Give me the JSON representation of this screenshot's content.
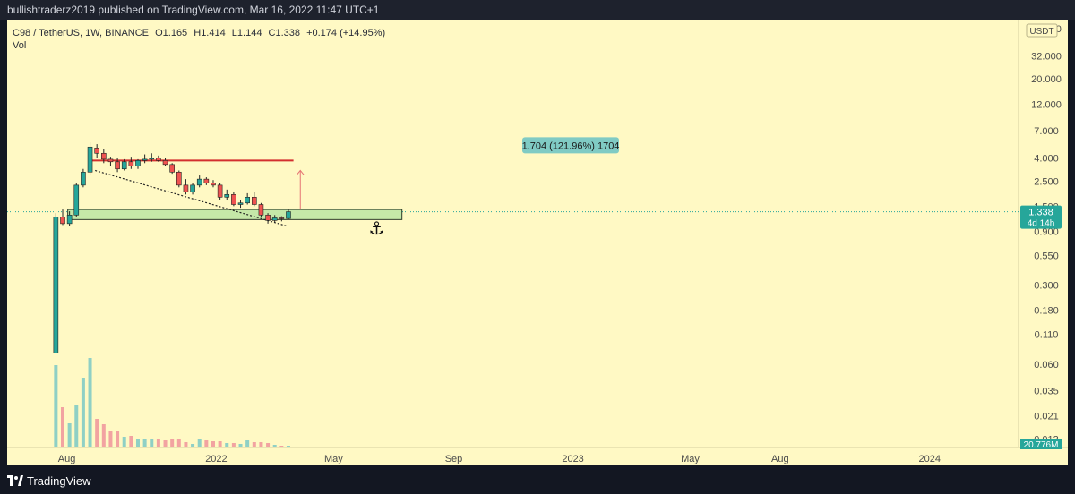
{
  "header": {
    "published_text": "bullishtraderz2019 published on TradingView.com, Mar 16, 2022 11:47 UTC+1"
  },
  "legend": {
    "symbol": "C98 / TetherUS, 1W, BINANCE",
    "open": "O1.165",
    "high": "H1.414",
    "low": "L1.144",
    "close": "C1.338",
    "change": "+0.174 (+14.95%)",
    "vol_label": "Vol"
  },
  "footer": {
    "brand": "TradingView"
  },
  "colors": {
    "background": "#fff9c4",
    "up": "#26a69a",
    "down": "#ef5350",
    "price_line": "#26a69a",
    "resistance": "#d32f2f",
    "zone": "#c5e8a8",
    "label_bg": "#80cbc4"
  },
  "chart_data": {
    "type": "candlestick",
    "timeframe": "1W",
    "yscale": "log",
    "currency": "USDT",
    "y_tick_labels": [
      "56.000",
      "32.000",
      "20.000",
      "12.000",
      "7.000",
      "4.000",
      "2.500",
      "1.500",
      "0.900",
      "0.550",
      "0.300",
      "0.180",
      "0.110",
      "0.060",
      "0.035",
      "0.021",
      "0.013"
    ],
    "y_ticks": [
      56,
      32,
      20,
      12,
      7,
      4,
      2.5,
      1.5,
      0.9,
      0.55,
      0.3,
      0.18,
      0.11,
      0.06,
      0.035,
      0.021,
      0.013
    ],
    "x_tick_labels": [
      "Aug",
      "2022",
      "May",
      "Sep",
      "2023",
      "May",
      "Aug",
      "2024"
    ],
    "x_tick_dates": [
      "2021-08-01",
      "2022-01-01",
      "2022-05-01",
      "2022-09-01",
      "2023-01-01",
      "2023-05-01",
      "2023-08-01",
      "2024-01-01"
    ],
    "x_range": [
      "2021-06-01",
      "2024-04-01"
    ],
    "candles": [
      {
        "date": "2021-07-19",
        "open": 0.075,
        "high": 1.3,
        "low": 0.075,
        "close": 1.2
      },
      {
        "date": "2021-07-26",
        "open": 1.2,
        "high": 1.4,
        "low": 1.02,
        "close": 1.05
      },
      {
        "date": "2021-08-02",
        "open": 1.05,
        "high": 1.35,
        "low": 1.0,
        "close": 1.25
      },
      {
        "date": "2021-08-09",
        "open": 1.25,
        "high": 2.4,
        "low": 1.2,
        "close": 2.3
      },
      {
        "date": "2021-08-16",
        "open": 2.3,
        "high": 3.2,
        "low": 2.2,
        "close": 3.0
      },
      {
        "date": "2021-08-23",
        "open": 3.0,
        "high": 5.5,
        "low": 2.8,
        "close": 5.0
      },
      {
        "date": "2021-08-30",
        "open": 4.9,
        "high": 5.3,
        "low": 4.0,
        "close": 4.4
      },
      {
        "date": "2021-09-06",
        "open": 4.4,
        "high": 4.8,
        "low": 3.6,
        "close": 3.9
      },
      {
        "date": "2021-09-13",
        "open": 3.9,
        "high": 4.1,
        "low": 3.4,
        "close": 3.7
      },
      {
        "date": "2021-09-20",
        "open": 3.7,
        "high": 4.0,
        "low": 3.0,
        "close": 3.2
      },
      {
        "date": "2021-09-27",
        "open": 3.2,
        "high": 3.9,
        "low": 3.1,
        "close": 3.7
      },
      {
        "date": "2021-10-04",
        "open": 3.7,
        "high": 4.1,
        "low": 3.2,
        "close": 3.4
      },
      {
        "date": "2021-10-11",
        "open": 3.4,
        "high": 3.9,
        "low": 3.2,
        "close": 3.8
      },
      {
        "date": "2021-10-18",
        "open": 3.8,
        "high": 4.3,
        "low": 3.6,
        "close": 3.9
      },
      {
        "date": "2021-10-25",
        "open": 3.9,
        "high": 4.4,
        "low": 3.7,
        "close": 4.0
      },
      {
        "date": "2021-11-01",
        "open": 4.0,
        "high": 4.2,
        "low": 3.7,
        "close": 3.8
      },
      {
        "date": "2021-11-08",
        "open": 3.8,
        "high": 4.0,
        "low": 3.4,
        "close": 3.5
      },
      {
        "date": "2021-11-15",
        "open": 3.5,
        "high": 3.6,
        "low": 2.9,
        "close": 3.0
      },
      {
        "date": "2021-11-22",
        "open": 3.0,
        "high": 3.1,
        "low": 2.2,
        "close": 2.3
      },
      {
        "date": "2021-11-29",
        "open": 2.3,
        "high": 2.6,
        "low": 1.9,
        "close": 2.0
      },
      {
        "date": "2021-12-06",
        "open": 2.0,
        "high": 2.4,
        "low": 1.9,
        "close": 2.3
      },
      {
        "date": "2021-12-13",
        "open": 2.3,
        "high": 2.8,
        "low": 2.2,
        "close": 2.6
      },
      {
        "date": "2021-12-20",
        "open": 2.6,
        "high": 2.7,
        "low": 2.3,
        "close": 2.4
      },
      {
        "date": "2021-12-27",
        "open": 2.4,
        "high": 2.55,
        "low": 2.2,
        "close": 2.3
      },
      {
        "date": "2022-01-03",
        "open": 2.3,
        "high": 2.4,
        "low": 1.7,
        "close": 1.8
      },
      {
        "date": "2022-01-10",
        "open": 1.8,
        "high": 2.1,
        "low": 1.7,
        "close": 1.9
      },
      {
        "date": "2022-01-17",
        "open": 1.9,
        "high": 2.0,
        "low": 1.5,
        "close": 1.55
      },
      {
        "date": "2022-01-24",
        "open": 1.55,
        "high": 1.7,
        "low": 1.45,
        "close": 1.6
      },
      {
        "date": "2022-01-31",
        "open": 1.6,
        "high": 1.95,
        "low": 1.55,
        "close": 1.8
      },
      {
        "date": "2022-02-07",
        "open": 1.8,
        "high": 2.0,
        "low": 1.5,
        "close": 1.55
      },
      {
        "date": "2022-02-14",
        "open": 1.55,
        "high": 1.6,
        "low": 1.2,
        "close": 1.25
      },
      {
        "date": "2022-02-21",
        "open": 1.25,
        "high": 1.3,
        "low": 1.05,
        "close": 1.12
      },
      {
        "date": "2022-02-28",
        "open": 1.12,
        "high": 1.25,
        "low": 1.08,
        "close": 1.18
      },
      {
        "date": "2022-03-07",
        "open": 1.18,
        "high": 1.22,
        "low": 1.1,
        "close": 1.165
      },
      {
        "date": "2022-03-14",
        "open": 1.165,
        "high": 1.414,
        "low": 1.144,
        "close": 1.338
      }
    ],
    "volume": [
      {
        "date": "2021-07-19",
        "value": 92,
        "dir": "up"
      },
      {
        "date": "2021-07-26",
        "value": 45,
        "dir": "down"
      },
      {
        "date": "2021-08-02",
        "value": 27,
        "dir": "up"
      },
      {
        "date": "2021-08-09",
        "value": 47,
        "dir": "up"
      },
      {
        "date": "2021-08-16",
        "value": 78,
        "dir": "up"
      },
      {
        "date": "2021-08-23",
        "value": 100,
        "dir": "up"
      },
      {
        "date": "2021-08-30",
        "value": 32,
        "dir": "down"
      },
      {
        "date": "2021-09-06",
        "value": 26,
        "dir": "down"
      },
      {
        "date": "2021-09-13",
        "value": 18,
        "dir": "down"
      },
      {
        "date": "2021-09-20",
        "value": 18,
        "dir": "down"
      },
      {
        "date": "2021-09-27",
        "value": 12,
        "dir": "up"
      },
      {
        "date": "2021-10-04",
        "value": 13,
        "dir": "down"
      },
      {
        "date": "2021-10-11",
        "value": 10,
        "dir": "up"
      },
      {
        "date": "2021-10-18",
        "value": 10,
        "dir": "up"
      },
      {
        "date": "2021-10-25",
        "value": 10,
        "dir": "up"
      },
      {
        "date": "2021-11-01",
        "value": 9,
        "dir": "down"
      },
      {
        "date": "2021-11-08",
        "value": 8,
        "dir": "down"
      },
      {
        "date": "2021-11-15",
        "value": 10,
        "dir": "down"
      },
      {
        "date": "2021-11-22",
        "value": 9,
        "dir": "down"
      },
      {
        "date": "2021-11-29",
        "value": 6,
        "dir": "down"
      },
      {
        "date": "2021-12-06",
        "value": 4,
        "dir": "up"
      },
      {
        "date": "2021-12-13",
        "value": 9,
        "dir": "up"
      },
      {
        "date": "2021-12-20",
        "value": 8,
        "dir": "down"
      },
      {
        "date": "2021-12-27",
        "value": 7,
        "dir": "down"
      },
      {
        "date": "2022-01-03",
        "value": 7,
        "dir": "down"
      },
      {
        "date": "2022-01-10",
        "value": 5,
        "dir": "up"
      },
      {
        "date": "2022-01-17",
        "value": 5,
        "dir": "down"
      },
      {
        "date": "2022-01-24",
        "value": 4,
        "dir": "up"
      },
      {
        "date": "2022-01-31",
        "value": 8,
        "dir": "up"
      },
      {
        "date": "2022-02-07",
        "value": 6,
        "dir": "down"
      },
      {
        "date": "2022-02-14",
        "value": 6,
        "dir": "down"
      },
      {
        "date": "2022-02-21",
        "value": 5,
        "dir": "down"
      },
      {
        "date": "2022-02-28",
        "value": 3,
        "dir": "up"
      },
      {
        "date": "2022-03-07",
        "value": 2,
        "dir": "down"
      },
      {
        "date": "2022-03-14",
        "value": 2,
        "dir": "up"
      }
    ],
    "current_price": 1.338,
    "current_price_label": "1.338",
    "countdown_label": "4d 14h",
    "volume_label": "20.776M",
    "measure_label": "1.704 (121.96%) 1704",
    "support_zone": {
      "low": 1.14,
      "high": 1.4,
      "start": "2021-08-02",
      "end": "2022-07-10"
    },
    "resistance_line": {
      "price": 3.8,
      "start": "2021-08-23",
      "end": "2022-03-21"
    },
    "trendline": [
      {
        "date": "2021-08-30",
        "price": 3.1
      },
      {
        "date": "2022-03-14",
        "price": 1.0
      }
    ],
    "target_arrow": {
      "date": "2022-03-28",
      "from": 1.4,
      "to": 3.1
    },
    "anchor_marker": {
      "date": "2022-06-14",
      "price": 0.97
    }
  }
}
